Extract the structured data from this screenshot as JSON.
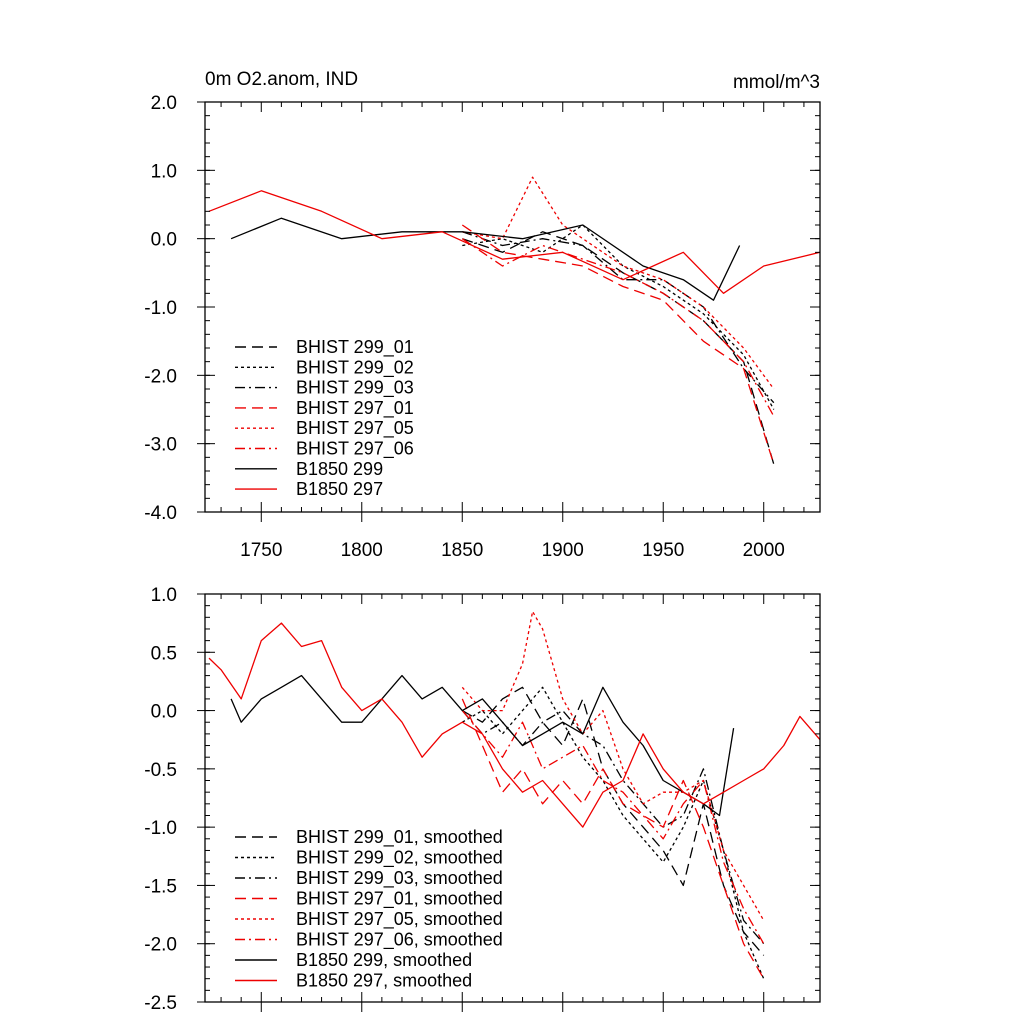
{
  "chart_data": [
    {
      "type": "line",
      "title_left": "0m O2.anom, IND",
      "title_right": "mmol/m^3",
      "xlim": [
        1722,
        2028
      ],
      "ylim": [
        -4.0,
        2.0
      ],
      "xticks": [
        1750,
        1800,
        1850,
        1900,
        1950,
        2000
      ],
      "xticklabels": [
        "1750",
        "1800",
        "1850",
        "1900",
        "1950",
        "2000"
      ],
      "yticks": [
        2.0,
        1.0,
        0.0,
        -1.0,
        -2.0,
        -3.0,
        -4.0
      ],
      "yticklabels": [
        "2.0",
        "1.0",
        "0.0",
        "-1.0",
        "-2.0",
        "-3.0",
        "-4.0"
      ],
      "series": [
        {
          "name": "BHIST 299_01",
          "color": "#000000",
          "dash": "long",
          "x": [
            1850,
            1870,
            1890,
            1910,
            1930,
            1950,
            1970,
            1990,
            2005
          ],
          "y": [
            0.0,
            -0.2,
            0.1,
            -0.1,
            -0.5,
            -0.8,
            -1.2,
            -1.8,
            -3.3
          ]
        },
        {
          "name": "BHIST 299_02",
          "color": "#000000",
          "dash": "dot",
          "x": [
            1850,
            1870,
            1890,
            1910,
            1930,
            1950,
            1970,
            1990,
            2005
          ],
          "y": [
            -0.1,
            0.0,
            -0.2,
            0.2,
            -0.4,
            -0.7,
            -1.1,
            -1.7,
            -2.5
          ]
        },
        {
          "name": "BHIST 299_03",
          "color": "#000000",
          "dash": "dashdot",
          "x": [
            1850,
            1870,
            1890,
            1910,
            1930,
            1950,
            1970,
            1990,
            2005
          ],
          "y": [
            0.1,
            -0.1,
            0.0,
            -0.1,
            -0.6,
            -0.6,
            -1.0,
            -1.9,
            -2.4
          ]
        },
        {
          "name": "BHIST 297_01",
          "color": "#ee0000",
          "dash": "long",
          "x": [
            1850,
            1870,
            1890,
            1910,
            1930,
            1950,
            1970,
            1990,
            2005
          ],
          "y": [
            0.2,
            -0.2,
            -0.3,
            -0.4,
            -0.7,
            -0.9,
            -1.5,
            -1.9,
            -3.3
          ]
        },
        {
          "name": "BHIST 297_05",
          "color": "#ee0000",
          "dash": "dot",
          "x": [
            1850,
            1870,
            1885,
            1900,
            1930,
            1950,
            1970,
            1990,
            2005
          ],
          "y": [
            0.1,
            0.0,
            0.9,
            0.2,
            -0.4,
            -0.6,
            -1.0,
            -1.6,
            -2.2
          ]
        },
        {
          "name": "BHIST 297_06",
          "color": "#ee0000",
          "dash": "dashdot",
          "x": [
            1850,
            1870,
            1890,
            1910,
            1930,
            1950,
            1970,
            1990,
            2005
          ],
          "y": [
            0.0,
            -0.4,
            -0.1,
            -0.3,
            -0.5,
            -0.8,
            -1.2,
            -1.8,
            -2.6
          ]
        },
        {
          "name": "B1850 299",
          "color": "#000000",
          "dash": "solid",
          "x": [
            1735,
            1760,
            1790,
            1820,
            1850,
            1880,
            1910,
            1940,
            1960,
            1975,
            1988
          ],
          "y": [
            0.0,
            0.3,
            0.0,
            0.1,
            0.1,
            0.0,
            0.2,
            -0.4,
            -0.6,
            -0.9,
            -0.1
          ]
        },
        {
          "name": "B1850 297",
          "color": "#ee0000",
          "dash": "solid",
          "x": [
            1724,
            1750,
            1780,
            1810,
            1840,
            1870,
            1900,
            1930,
            1960,
            1980,
            2000,
            2028
          ],
          "y": [
            0.4,
            0.7,
            0.4,
            0.0,
            0.1,
            -0.3,
            -0.2,
            -0.6,
            -0.2,
            -0.8,
            -0.4,
            -0.2
          ]
        }
      ]
    },
    {
      "type": "line",
      "xlim": [
        1722,
        2028
      ],
      "ylim": [
        -2.5,
        1.0
      ],
      "xticks": [
        1750,
        1800,
        1850,
        1900,
        1950,
        2000
      ],
      "yticks": [
        1.0,
        0.5,
        0.0,
        -0.5,
        -1.0,
        -1.5,
        -2.0,
        -2.5
      ],
      "yticklabels": [
        "1.0",
        "0.5",
        "0.0",
        "-0.5",
        "-1.0",
        "-1.5",
        "-2.0",
        "-2.5"
      ],
      "series": [
        {
          "name": "BHIST 299_01, smoothed",
          "color": "#000000",
          "dash": "long",
          "x": [
            1850,
            1860,
            1870,
            1880,
            1890,
            1900,
            1910,
            1920,
            1930,
            1940,
            1950,
            1960,
            1970,
            1980,
            1990,
            2000
          ],
          "y": [
            0.0,
            -0.1,
            0.1,
            0.2,
            -0.1,
            -0.3,
            0.1,
            -0.5,
            -0.8,
            -1.0,
            -1.2,
            -1.5,
            -0.8,
            -1.5,
            -1.9,
            -2.1
          ]
        },
        {
          "name": "BHIST 299_02, smoothed",
          "color": "#000000",
          "dash": "dot",
          "x": [
            1850,
            1860,
            1870,
            1880,
            1890,
            1900,
            1910,
            1920,
            1930,
            1940,
            1950,
            1960,
            1970,
            1980,
            1990,
            2000
          ],
          "y": [
            -0.1,
            0.0,
            -0.2,
            0.0,
            0.2,
            -0.1,
            -0.4,
            -0.6,
            -0.9,
            -1.1,
            -1.3,
            -1.0,
            -0.6,
            -1.2,
            -1.9,
            -2.3
          ]
        },
        {
          "name": "BHIST 299_03, smoothed",
          "color": "#000000",
          "dash": "dashdot",
          "x": [
            1850,
            1860,
            1870,
            1880,
            1890,
            1900,
            1910,
            1920,
            1930,
            1940,
            1950,
            1960,
            1970,
            1980,
            1990,
            2000
          ],
          "y": [
            0.0,
            -0.2,
            -0.1,
            -0.3,
            -0.1,
            0.0,
            -0.2,
            -0.3,
            -0.6,
            -0.8,
            -1.0,
            -0.9,
            -0.5,
            -1.2,
            -1.8,
            -2.0
          ]
        },
        {
          "name": "BHIST 297_01, smoothed",
          "color": "#ee0000",
          "dash": "long",
          "x": [
            1850,
            1860,
            1870,
            1880,
            1890,
            1900,
            1910,
            1920,
            1930,
            1940,
            1950,
            1960,
            1970,
            1980,
            1990,
            2000
          ],
          "y": [
            0.1,
            -0.3,
            -0.7,
            -0.5,
            -0.8,
            -0.6,
            -0.8,
            -0.5,
            -0.8,
            -0.9,
            -1.0,
            -0.6,
            -1.0,
            -1.5,
            -2.0,
            -2.3
          ]
        },
        {
          "name": "BHIST 297_05, smoothed",
          "color": "#ee0000",
          "dash": "dot",
          "x": [
            1850,
            1860,
            1870,
            1880,
            1885,
            1890,
            1900,
            1910,
            1920,
            1930,
            1940,
            1950,
            1960,
            1970,
            1980,
            1990,
            2000
          ],
          "y": [
            0.2,
            0.0,
            0.0,
            0.4,
            0.85,
            0.7,
            0.1,
            -0.2,
            0.0,
            -0.5,
            -0.8,
            -0.7,
            -0.7,
            -0.6,
            -1.2,
            -1.5,
            -1.8
          ]
        },
        {
          "name": "BHIST 297_06, smoothed",
          "color": "#ee0000",
          "dash": "dashdot",
          "x": [
            1850,
            1860,
            1870,
            1880,
            1890,
            1900,
            1910,
            1920,
            1930,
            1940,
            1950,
            1960,
            1970,
            1980,
            1990,
            2000
          ],
          "y": [
            0.0,
            -0.2,
            -0.4,
            -0.1,
            -0.5,
            -0.4,
            -0.3,
            -0.6,
            -0.7,
            -0.9,
            -1.1,
            -0.8,
            -0.6,
            -1.3,
            -1.7,
            -2.0
          ]
        },
        {
          "name": "B1850 299, smoothed",
          "color": "#000000",
          "dash": "solid",
          "x": [
            1735,
            1740,
            1750,
            1760,
            1770,
            1780,
            1790,
            1800,
            1810,
            1820,
            1830,
            1840,
            1850,
            1860,
            1870,
            1880,
            1890,
            1900,
            1910,
            1920,
            1930,
            1940,
            1950,
            1960,
            1970,
            1978,
            1985
          ],
          "y": [
            0.1,
            -0.1,
            0.1,
            0.2,
            0.3,
            0.1,
            -0.1,
            -0.1,
            0.1,
            0.3,
            0.1,
            0.2,
            0.0,
            0.1,
            -0.1,
            -0.3,
            -0.2,
            -0.1,
            -0.2,
            0.2,
            -0.1,
            -0.3,
            -0.6,
            -0.7,
            -0.8,
            -0.9,
            -0.15
          ]
        },
        {
          "name": "B1850 297, smoothed",
          "color": "#ee0000",
          "dash": "solid",
          "x": [
            1724,
            1730,
            1740,
            1750,
            1760,
            1770,
            1780,
            1790,
            1800,
            1810,
            1820,
            1830,
            1840,
            1850,
            1860,
            1870,
            1880,
            1890,
            1900,
            1910,
            1920,
            1930,
            1940,
            1950,
            1960,
            1970,
            1980,
            1990,
            2000,
            2010,
            2018,
            2028
          ],
          "y": [
            0.45,
            0.35,
            0.1,
            0.6,
            0.75,
            0.55,
            0.6,
            0.2,
            0.0,
            0.1,
            -0.1,
            -0.4,
            -0.2,
            -0.1,
            -0.2,
            -0.5,
            -0.7,
            -0.6,
            -0.8,
            -1.0,
            -0.7,
            -0.6,
            -0.2,
            -0.5,
            -0.7,
            -0.8,
            -0.7,
            -0.6,
            -0.5,
            -0.3,
            -0.05,
            -0.25
          ]
        }
      ]
    }
  ]
}
